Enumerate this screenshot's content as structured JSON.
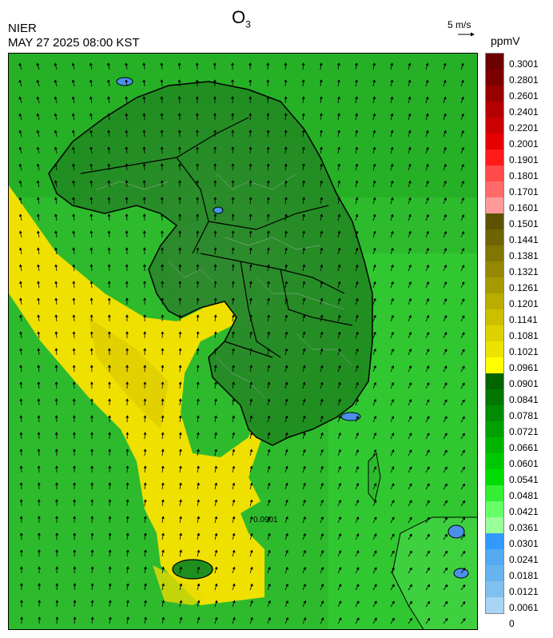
{
  "header": {
    "agency": "NIER",
    "timestamp": "MAY 27 2025 08:00 KST",
    "title_main": "O",
    "title_sub": "3",
    "wind_scale": "5 m/s",
    "unit": "ppmV"
  },
  "contour_label": "0.0901",
  "colorbar": {
    "labels": [
      "0.3001",
      "0.2801",
      "0.2601",
      "0.2401",
      "0.2201",
      "0.2001",
      "0.1901",
      "0.1801",
      "0.1701",
      "0.1601",
      "0.1501",
      "0.1441",
      "0.1381",
      "0.1321",
      "0.1261",
      "0.1201",
      "0.1141",
      "0.1081",
      "0.1021",
      "0.0961",
      "0.0901",
      "0.0841",
      "0.0781",
      "0.0721",
      "0.0661",
      "0.0601",
      "0.0541",
      "0.0481",
      "0.0421",
      "0.0361",
      "0.0301",
      "0.0241",
      "0.0181",
      "0.0121",
      "0.0061",
      "0"
    ],
    "colors": [
      "#6b0000",
      "#7d0000",
      "#990000",
      "#b30000",
      "#cc0000",
      "#e60000",
      "#ff1a1a",
      "#ff4a4a",
      "#ff6b6b",
      "#ff9a9a",
      "#5c5200",
      "#6e6400",
      "#807600",
      "#938800",
      "#a69a00",
      "#b9ad00",
      "#ccbf00",
      "#dfd100",
      "#eee300",
      "#ffff00",
      "#006400",
      "#007800",
      "#008c00",
      "#00a000",
      "#00b400",
      "#00c800",
      "#00dc00",
      "#33ee33",
      "#66ff66",
      "#99ff99",
      "#3399ff",
      "#55aaf2",
      "#66b3f0",
      "#80c0f0",
      "#a8d4f5"
    ]
  },
  "colors": {
    "land_green": "#1e8f1e",
    "sea_green": "#2dbb2d",
    "high_yellow": "#f0e000",
    "low_blue": "#4a90e8"
  }
}
